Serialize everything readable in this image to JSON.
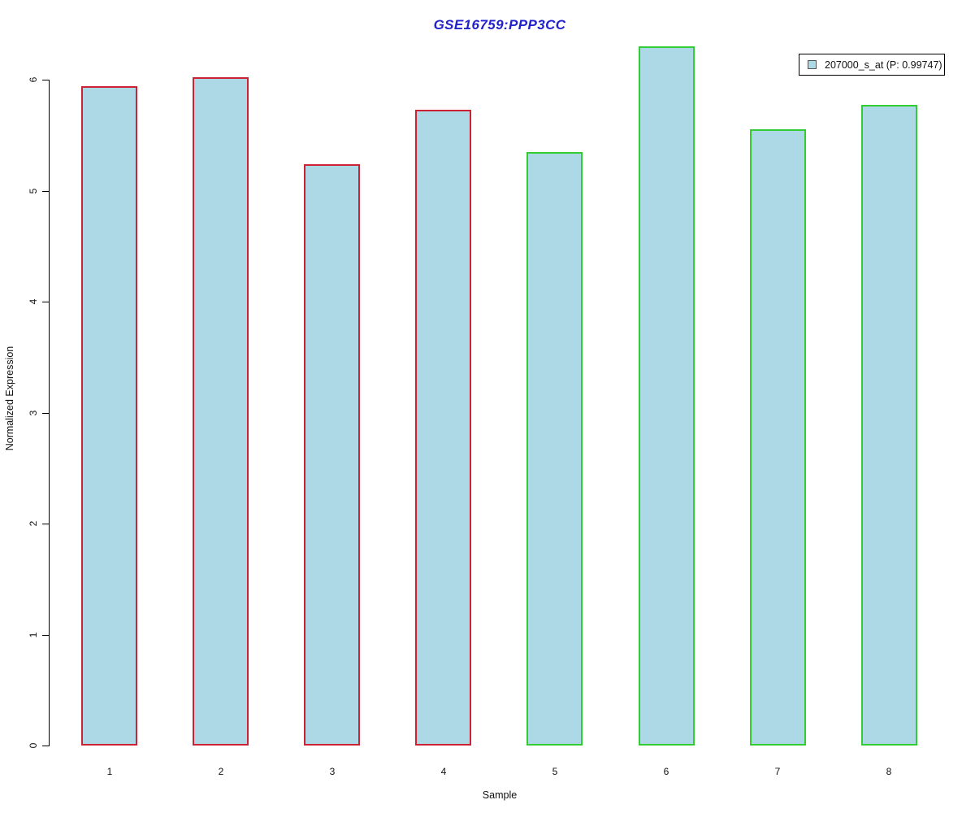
{
  "title": {
    "text": "GSE16759:PPP3CC"
  },
  "legend": {
    "label": "207000_s_at (P: 0.99747)"
  },
  "axes": {
    "y_label": "Normalized Expression",
    "x_label": "Sample",
    "y_tick_labels": [
      "0",
      "1",
      "2",
      "3",
      "4",
      "5",
      "6"
    ],
    "x_tick_labels": [
      "1",
      "2",
      "3",
      "4",
      "5",
      "6",
      "7",
      "8"
    ]
  },
  "colors": {
    "bar_fill": "#ADD8E6",
    "red_border": "#CC2233",
    "green_border": "#33CC33",
    "title_text": "#2222CC",
    "axis_text": "#111111"
  },
  "chart_data": {
    "type": "bar",
    "title": "GSE16759:PPP3CC",
    "xlabel": "Sample",
    "ylabel": "Normalized Expression",
    "ylim": [
      0,
      6.3
    ],
    "y_ticks": [
      0,
      1,
      2,
      3,
      4,
      5,
      6
    ],
    "grid": false,
    "legend_position": "top-right",
    "categories": [
      "1",
      "2",
      "3",
      "4",
      "5",
      "6",
      "7",
      "8"
    ],
    "series": [
      {
        "name": "207000_s_at (P: 0.99747)",
        "values": [
          5.94,
          6.02,
          5.24,
          5.73,
          5.35,
          6.3,
          5.55,
          5.77
        ]
      }
    ],
    "bar_border_groups": [
      "red",
      "red",
      "red",
      "red",
      "green",
      "green",
      "green",
      "green"
    ]
  }
}
